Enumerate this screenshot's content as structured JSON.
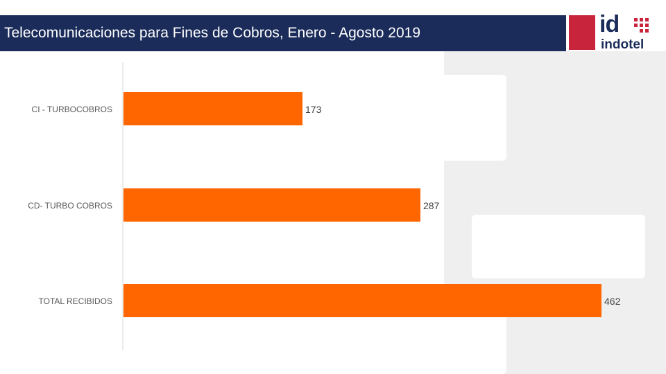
{
  "header": {
    "title": "Telecomunicaciones para Fines de Cobros, Enero - Agosto 2019"
  },
  "logo": {
    "brand_short": "id",
    "brand_name": "indotel"
  },
  "colors": {
    "header_bg": "#1b2c5a",
    "bar": "#ff6600",
    "logo_red": "#c8243c"
  },
  "chart_data": {
    "type": "bar",
    "orientation": "horizontal",
    "categories": [
      "CI - TURBOCOBROS",
      "CD- TURBO COBROS",
      "TOTAL RECIBIDOS"
    ],
    "values": [
      173,
      287,
      462
    ],
    "title": "",
    "xlabel": "",
    "ylabel": "",
    "xlim": [
      0,
      462
    ],
    "grid": false,
    "data_labels": true
  }
}
